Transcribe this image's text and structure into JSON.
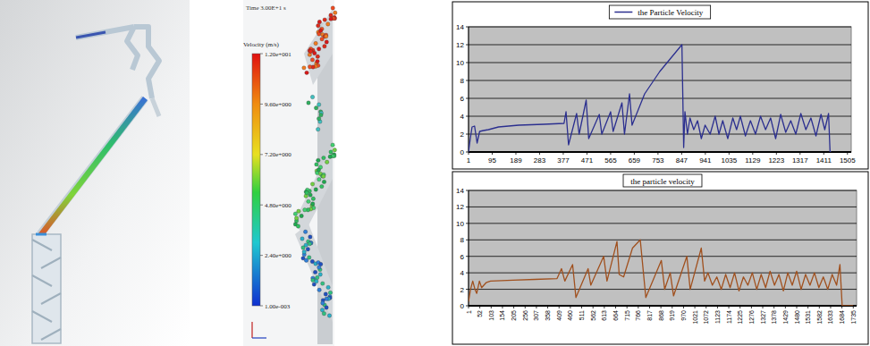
{
  "chart_data": [
    {
      "type": "line",
      "x": [
        1,
        8,
        15,
        25,
        35,
        45,
        60,
        80,
        120,
        200,
        300,
        380,
        388,
        398,
        430,
        440,
        468,
        478,
        520,
        530,
        565,
        575,
        610,
        620,
        640,
        650,
        700,
        760,
        848,
        855,
        860,
        870,
        880,
        895,
        910,
        925,
        940,
        960,
        980,
        995,
        1010,
        1030,
        1050,
        1065,
        1080,
        1100,
        1120,
        1140,
        1160,
        1180,
        1200,
        1220,
        1240,
        1260,
        1280,
        1300,
        1320,
        1340,
        1360,
        1380,
        1400,
        1415,
        1430,
        1436,
        1440
      ],
      "series": [
        {
          "name": "the Particle Velocity",
          "color": "#2b2f8f",
          "values": [
            0,
            1.5,
            2.8,
            2.9,
            1.0,
            2.3,
            2.4,
            2.5,
            2.8,
            3.0,
            3.1,
            3.2,
            4.5,
            0.8,
            4.3,
            2.0,
            5.8,
            1.5,
            4.2,
            2.0,
            4.5,
            2.3,
            5.5,
            2.0,
            6.5,
            3.0,
            6.5,
            9.0,
            12.0,
            0.5,
            4.5,
            2.0,
            3.8,
            2.5,
            3.5,
            1.5,
            3.0,
            2.0,
            4.0,
            2.0,
            3.5,
            1.5,
            3.8,
            2.5,
            4.0,
            1.8,
            3.5,
            2.0,
            4.0,
            2.5,
            3.8,
            1.5,
            4.2,
            2.2,
            3.5,
            2.0,
            4.3,
            2.5,
            3.8,
            1.8,
            4.2,
            2.5,
            4.3,
            0,
            0
          ]
        }
      ],
      "xlim": [
        1,
        1520
      ],
      "xticks": [
        1,
        95,
        189,
        283,
        377,
        471,
        565,
        659,
        753,
        847,
        941,
        1035,
        1129,
        1223,
        1317,
        1411,
        1505
      ],
      "ylim": [
        0,
        14
      ],
      "yticks": [
        0,
        2,
        4,
        6,
        8,
        10,
        12,
        14
      ],
      "grid": true,
      "legend": "top"
    },
    {
      "type": "line",
      "title": "the particle velocity",
      "x": [
        1,
        10,
        20,
        30,
        38,
        50,
        60,
        80,
        100,
        200,
        300,
        400,
        420,
        435,
        470,
        485,
        540,
        552,
        610,
        625,
        670,
        680,
        700,
        740,
        775,
        800,
        870,
        885,
        910,
        925,
        985,
        1000,
        1050,
        1065,
        1080,
        1100,
        1120,
        1140,
        1160,
        1180,
        1200,
        1220,
        1240,
        1260,
        1280,
        1300,
        1320,
        1340,
        1360,
        1380,
        1400,
        1420,
        1440,
        1460,
        1480,
        1500,
        1520,
        1540,
        1560,
        1580,
        1600,
        1620,
        1640,
        1660,
        1675,
        1685,
        1735
      ],
      "series": [
        {
          "color": "#a0501e",
          "values": [
            0.5,
            2.0,
            3.0,
            2.0,
            1.5,
            3.0,
            2.2,
            2.8,
            3.0,
            3.1,
            3.2,
            3.3,
            4.5,
            3.0,
            5.0,
            1.0,
            4.5,
            2.5,
            6.0,
            3.0,
            7.8,
            3.8,
            3.5,
            7.0,
            8.0,
            1.0,
            5.5,
            2.0,
            4.0,
            1.2,
            6.0,
            2.0,
            7.0,
            3.0,
            4.0,
            2.5,
            3.5,
            2.0,
            3.8,
            2.2,
            4.0,
            1.8,
            3.5,
            2.5,
            4.0,
            2.0,
            3.8,
            2.2,
            4.2,
            2.5,
            3.8,
            1.8,
            4.0,
            2.5,
            4.2,
            2.0,
            3.8,
            2.5,
            4.0,
            2.2,
            3.5,
            2.0,
            3.8,
            2.5,
            5.0,
            0,
            0
          ]
        }
      ],
      "xlim": [
        1,
        1750
      ],
      "xticks": [
        1,
        52,
        103,
        154,
        205,
        256,
        307,
        358,
        409,
        460,
        511,
        562,
        613,
        664,
        715,
        766,
        817,
        868,
        919,
        970,
        1021,
        1072,
        1123,
        1174,
        1225,
        1276,
        1327,
        1378,
        1429,
        1480,
        1531,
        1582,
        1633,
        1684,
        1735
      ],
      "ylim": [
        0,
        14
      ],
      "yticks": [
        0,
        2,
        4,
        6,
        8,
        10,
        12,
        14
      ],
      "grid": true
    }
  ],
  "scene": {
    "time": "Time 3.00E+1 s",
    "colorbar": {
      "title": "Velocity (m/s)",
      "range": [
        0.001,
        12
      ],
      "ticks": [
        {
          "value": 12,
          "label": "1.20e+001"
        },
        {
          "value": 9.6,
          "label": "9.60e+000"
        },
        {
          "value": 7.2,
          "label": "7.20e+000"
        },
        {
          "value": 4.8,
          "label": "4.80e+000"
        },
        {
          "value": 2.4,
          "label": "2.40e+000"
        },
        {
          "value": 0.001,
          "label": "1.00e-003"
        }
      ]
    }
  }
}
